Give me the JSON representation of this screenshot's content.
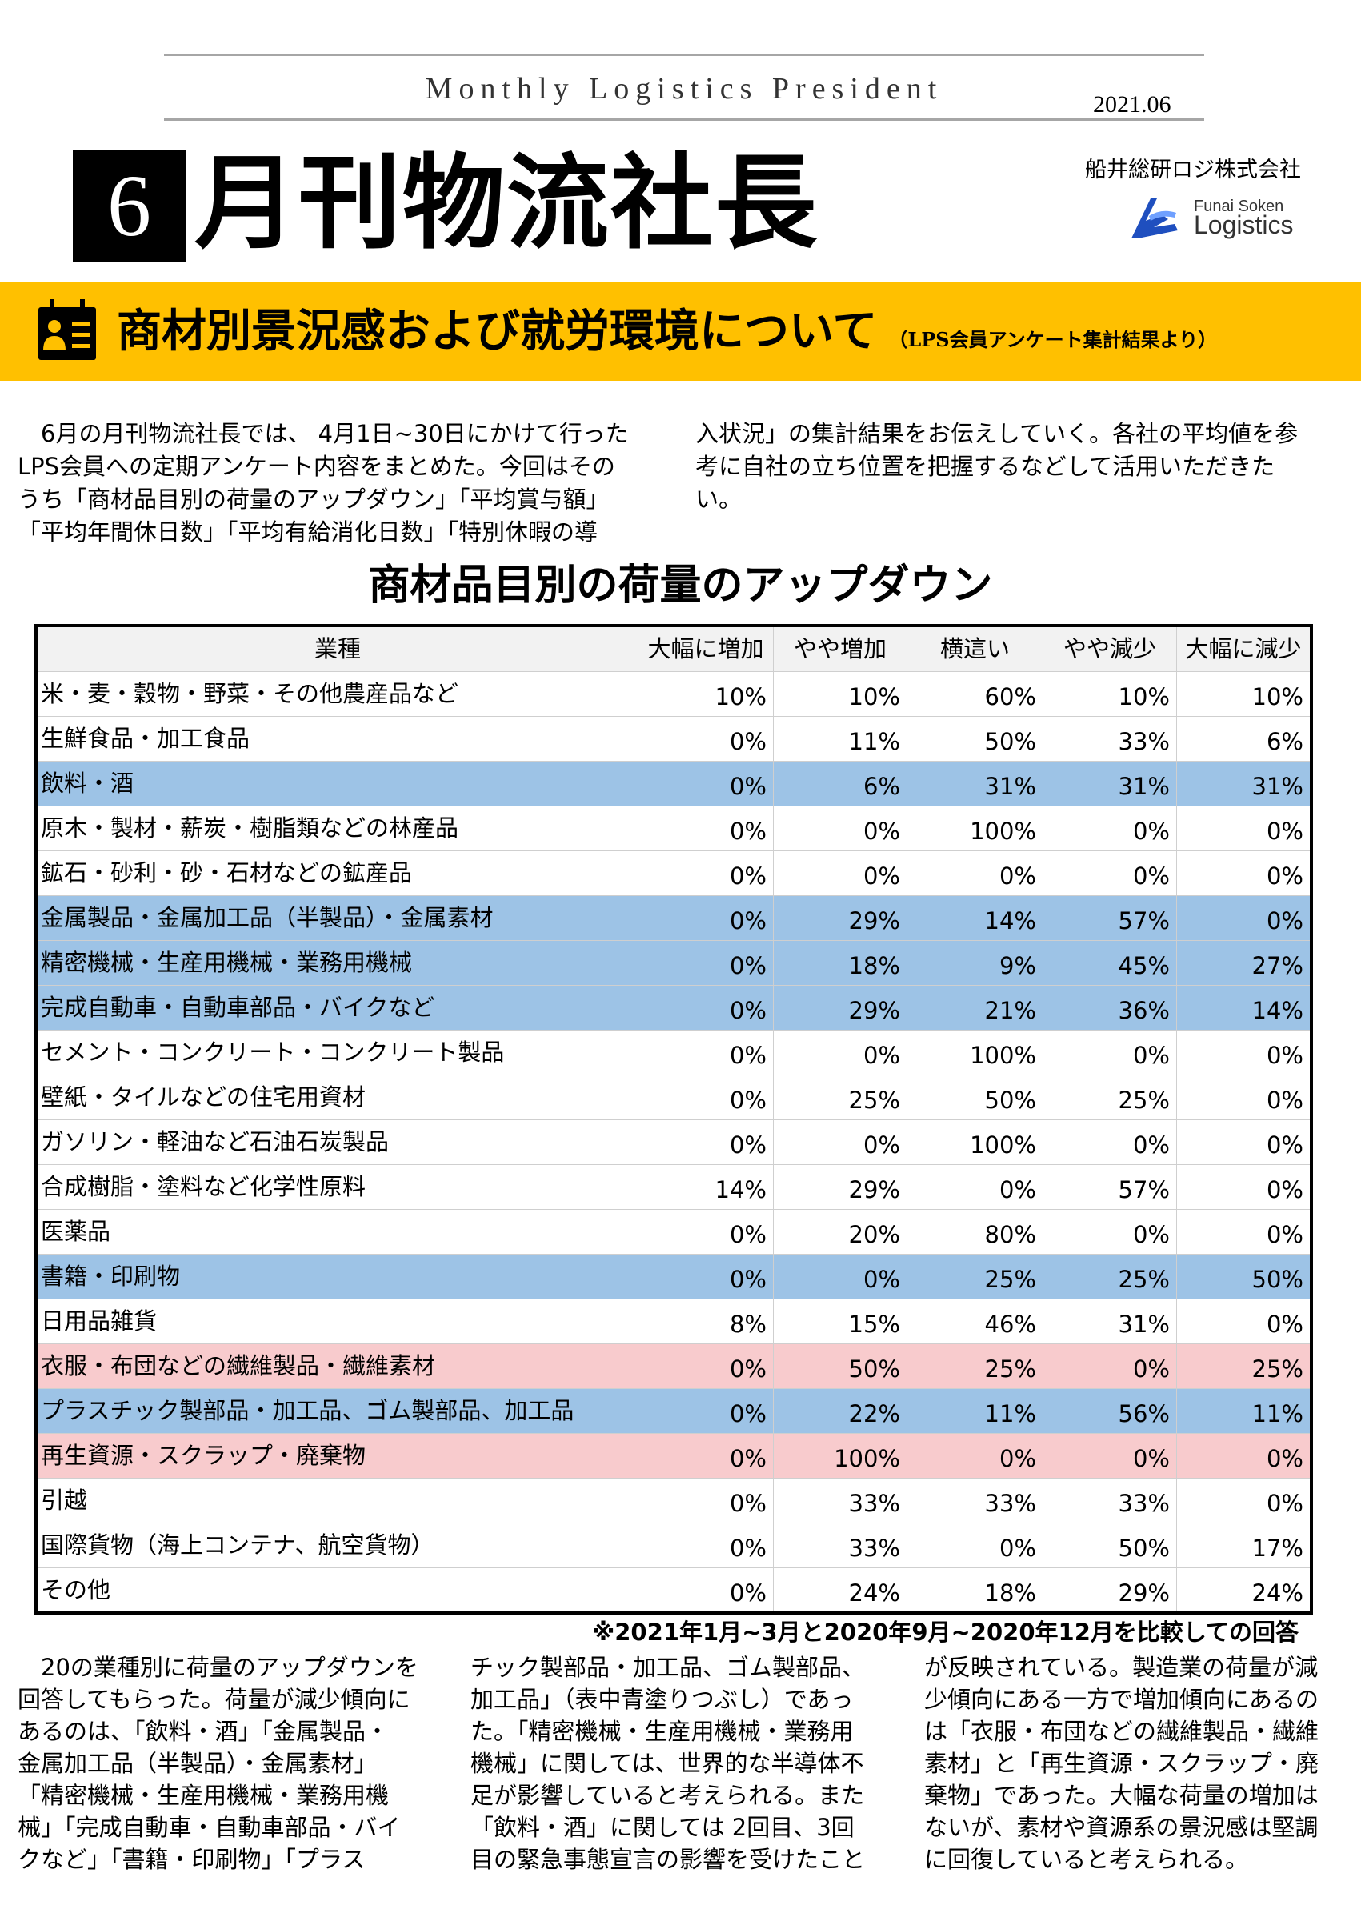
{
  "masthead": {
    "english_title": "Monthly Logistics President",
    "issue_date": "2021.06",
    "issue_number": "6",
    "japanese_title": "月刊物流社長",
    "company": "船井総研ロジ株式会社",
    "logo_text": [
      "Funai Soken",
      "Logistics"
    ],
    "logo_color": "#1f4fbf"
  },
  "banner": {
    "title": "商材別景況感および就労環境について",
    "subtitle": "（LPS会員アンケート集計結果より）",
    "color": "#ffc000",
    "icon": "calendar-person-icon"
  },
  "intro": {
    "column1": "　6月の月刊物流社長では、 4月1日~30日にかけて行った\nLPS会員への定期アンケート内容をまとめた。今回はその\nうち「商材品目別の荷量のアップダウン」「平均賞与額」\n「平均年間休日数」「平均有給消化日数」「特別休暇の導",
    "column2": "入状況」の集計結果をお伝えしていく。各社の平均値を参\n考に自社の立ち位置を把握するなどして活用いただきた\nい。"
  },
  "table": {
    "title": "商材品目別の荷量のアップダウン",
    "headers": [
      "業種",
      "大幅に増加",
      "やや増加",
      "横這い",
      "やや減少",
      "大幅に減少"
    ],
    "highlight_colors": {
      "blue": "#9dc3e6",
      "pink": "#f8cbcd"
    },
    "rows": [
      {
        "name": "米・麦・穀物・野菜・その他農産品など",
        "values": [
          "10%",
          "10%",
          "60%",
          "10%",
          "10%"
        ],
        "highlight": ""
      },
      {
        "name": "生鮮食品・加工食品",
        "values": [
          "0%",
          "11%",
          "50%",
          "33%",
          "6%"
        ],
        "highlight": ""
      },
      {
        "name": "飲料・酒",
        "values": [
          "0%",
          "6%",
          "31%",
          "31%",
          "31%"
        ],
        "highlight": "blue"
      },
      {
        "name": "原木・製材・薪炭・樹脂類などの林産品",
        "values": [
          "0%",
          "0%",
          "100%",
          "0%",
          "0%"
        ],
        "highlight": ""
      },
      {
        "name": "鉱石・砂利・砂・石材などの鉱産品",
        "values": [
          "0%",
          "0%",
          "0%",
          "0%",
          "0%"
        ],
        "highlight": ""
      },
      {
        "name": "金属製品・金属加工品（半製品）・金属素材",
        "values": [
          "0%",
          "29%",
          "14%",
          "57%",
          "0%"
        ],
        "highlight": "blue"
      },
      {
        "name": "精密機械・生産用機械・業務用機械",
        "values": [
          "0%",
          "18%",
          "9%",
          "45%",
          "27%"
        ],
        "highlight": "blue"
      },
      {
        "name": "完成自動車・自動車部品・バイクなど",
        "values": [
          "0%",
          "29%",
          "21%",
          "36%",
          "14%"
        ],
        "highlight": "blue"
      },
      {
        "name": "セメント・コンクリート・コンクリート製品",
        "values": [
          "0%",
          "0%",
          "100%",
          "0%",
          "0%"
        ],
        "highlight": ""
      },
      {
        "name": "壁紙・タイルなどの住宅用資材",
        "values": [
          "0%",
          "25%",
          "50%",
          "25%",
          "0%"
        ],
        "highlight": ""
      },
      {
        "name": "ガソリン・軽油など石油石炭製品",
        "values": [
          "0%",
          "0%",
          "100%",
          "0%",
          "0%"
        ],
        "highlight": ""
      },
      {
        "name": "合成樹脂・塗料など化学性原料",
        "values": [
          "14%",
          "29%",
          "0%",
          "57%",
          "0%"
        ],
        "highlight": ""
      },
      {
        "name": "医薬品",
        "values": [
          "0%",
          "20%",
          "80%",
          "0%",
          "0%"
        ],
        "highlight": ""
      },
      {
        "name": "書籍・印刷物",
        "values": [
          "0%",
          "0%",
          "25%",
          "25%",
          "50%"
        ],
        "highlight": "blue"
      },
      {
        "name": "日用品雑貨",
        "values": [
          "8%",
          "15%",
          "46%",
          "31%",
          "0%"
        ],
        "highlight": ""
      },
      {
        "name": "衣服・布団などの繊維製品・繊維素材",
        "values": [
          "0%",
          "50%",
          "25%",
          "0%",
          "25%"
        ],
        "highlight": "pink"
      },
      {
        "name": "プラスチック製部品・加工品、ゴム製部品、加工品",
        "values": [
          "0%",
          "22%",
          "11%",
          "56%",
          "11%"
        ],
        "highlight": "blue"
      },
      {
        "name": "再生資源・スクラップ・廃棄物",
        "values": [
          "0%",
          "100%",
          "0%",
          "0%",
          "0%"
        ],
        "highlight": "pink"
      },
      {
        "name": "引越",
        "values": [
          "0%",
          "33%",
          "33%",
          "33%",
          "0%"
        ],
        "highlight": ""
      },
      {
        "name": "国際貨物（海上コンテナ、航空貨物）",
        "values": [
          "0%",
          "33%",
          "0%",
          "50%",
          "17%"
        ],
        "highlight": ""
      },
      {
        "name": "その他",
        "values": [
          "0%",
          "24%",
          "18%",
          "29%",
          "24%"
        ],
        "highlight": ""
      }
    ],
    "footnote": "※2021年1月~3月と2020年9月~2020年12月を比較しての回答"
  },
  "body": {
    "column1": "　20の業種別に荷量のアップダウンを\n回答してもらった。荷量が減少傾向に\nあるのは、「飲料・酒」「金属製品・\n金属加工品（半製品）・金属素材」\n「精密機械・生産用機械・業務用機\n械」「完成自動車・自動車部品・バイ\nクなど」「書籍・印刷物」「プラス",
    "column2": "チック製部品・加工品、ゴム製部品、\n加工品」（表中青塗りつぶし）であっ\nた。「精密機械・生産用機械・業務用\n機械」に関しては、世界的な半導体不\n足が影響していると考えられる。また\n「飲料・酒」に関しては 2回目、3回\n目の緊急事態宣言の影響を受けたこと",
    "column3": "が反映されている。製造業の荷量が減\n少傾向にある一方で増加傾向にあるの\nは「衣服・布団などの繊維製品・繊維\n素材」と「再生資源・スクラップ・廃\n棄物」であった。大幅な荷量の増加は\nないが、素材や資源系の景況感は堅調\nに回復していると考えられる。"
  }
}
